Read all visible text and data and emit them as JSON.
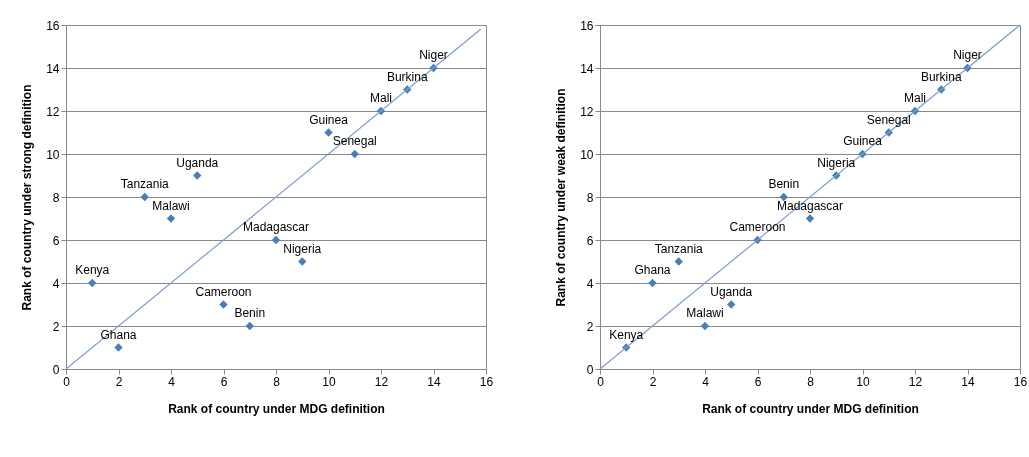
{
  "chart_data": [
    {
      "type": "scatter",
      "xlabel": "Rank of country under MDG definition",
      "ylabel": "Rank of country under strong definition",
      "xlim": [
        0,
        16
      ],
      "ylim": [
        0,
        16
      ],
      "xticks": [
        0,
        2,
        4,
        6,
        8,
        10,
        12,
        14,
        16
      ],
      "yticks": [
        0,
        2,
        4,
        6,
        8,
        10,
        12,
        14,
        16
      ],
      "grid": "y",
      "series": [
        {
          "color": "#4a7ebb",
          "marker": "diamond",
          "x": [
            1,
            2,
            3,
            4,
            5,
            6,
            7,
            8,
            9,
            10,
            11,
            12,
            13,
            14
          ],
          "values": [
            4,
            1,
            8,
            7,
            9,
            3,
            2,
            6,
            5,
            11,
            10,
            12,
            13,
            14
          ]
        },
        {
          "type": "line",
          "marker": "none",
          "color": "#7a9fd0",
          "x": [
            0,
            15.8
          ],
          "values": [
            0,
            15.8
          ]
        }
      ],
      "annotations": [
        {
          "text": "Kenya",
          "x": 1,
          "y": 4
        },
        {
          "text": "Ghana",
          "x": 2,
          "y": 1
        },
        {
          "text": "Tanzania",
          "x": 3,
          "y": 8
        },
        {
          "text": "Malawi",
          "x": 4,
          "y": 7
        },
        {
          "text": "Uganda",
          "x": 5,
          "y": 9
        },
        {
          "text": "Cameroon",
          "x": 6,
          "y": 3
        },
        {
          "text": "Benin",
          "x": 7,
          "y": 2
        },
        {
          "text": "Madagascar",
          "x": 8,
          "y": 6
        },
        {
          "text": "Nigeria",
          "x": 9,
          "y": 5
        },
        {
          "text": "Guinea",
          "x": 10,
          "y": 11
        },
        {
          "text": "Senegal",
          "x": 11,
          "y": 10
        },
        {
          "text": "Mali",
          "x": 12,
          "y": 12
        },
        {
          "text": "Burkina",
          "x": 13,
          "y": 13
        },
        {
          "text": "Niger",
          "x": 14,
          "y": 14
        }
      ]
    },
    {
      "type": "scatter",
      "xlabel": "Rank of country under MDG definition",
      "ylabel": "Rank of country under weak definition",
      "xlim": [
        0,
        16
      ],
      "ylim": [
        0,
        16
      ],
      "xticks": [
        0,
        2,
        4,
        6,
        8,
        10,
        12,
        14,
        16
      ],
      "yticks": [
        0,
        2,
        4,
        6,
        8,
        10,
        12,
        14,
        16
      ],
      "grid": "y",
      "series": [
        {
          "color": "#4a7ebb",
          "marker": "diamond",
          "x": [
            1,
            2,
            3,
            4,
            5,
            6,
            7,
            8,
            9,
            10,
            11,
            12,
            13,
            14
          ],
          "values": [
            1,
            4,
            5,
            2,
            3,
            6,
            8,
            7,
            9,
            10,
            11,
            12,
            13,
            14
          ]
        },
        {
          "type": "line",
          "marker": "none",
          "color": "#7a9fd0",
          "x": [
            0,
            16
          ],
          "values": [
            0,
            16
          ]
        }
      ],
      "annotations": [
        {
          "text": "Kenya",
          "x": 1,
          "y": 1
        },
        {
          "text": "Ghana",
          "x": 2,
          "y": 4
        },
        {
          "text": "Tanzania",
          "x": 3,
          "y": 5
        },
        {
          "text": "Malawi",
          "x": 4,
          "y": 2
        },
        {
          "text": "Uganda",
          "x": 5,
          "y": 3
        },
        {
          "text": "Cameroon",
          "x": 6,
          "y": 6
        },
        {
          "text": "Benin",
          "x": 7,
          "y": 8
        },
        {
          "text": "Madagascar",
          "x": 8,
          "y": 7
        },
        {
          "text": "Nigeria",
          "x": 9,
          "y": 9
        },
        {
          "text": "Guinea",
          "x": 10,
          "y": 10
        },
        {
          "text": "Senegal",
          "x": 11,
          "y": 11
        },
        {
          "text": "Mali",
          "x": 12,
          "y": 12
        },
        {
          "text": "Burkina",
          "x": 13,
          "y": 13
        },
        {
          "text": "Niger",
          "x": 14,
          "y": 14
        }
      ]
    }
  ]
}
